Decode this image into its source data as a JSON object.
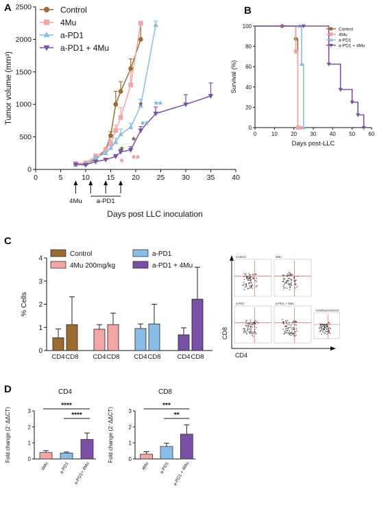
{
  "colors": {
    "control": "#9b6b2f",
    "mu": "#f4a5a5",
    "pd1": "#89bde8",
    "combo": "#7a4fa6",
    "star_brown": "#7a5230",
    "star_pink": "#f08a8a",
    "star_blue": "#6aaee0"
  },
  "panels": {
    "a": "A",
    "b": "B",
    "c": "C",
    "d": "D"
  },
  "chart_data": [
    {
      "id": "A",
      "type": "line",
      "ylabel": "Tumor volume (mm³)",
      "xlabel": "Days post LLC inoculation",
      "xlim": [
        0,
        40
      ],
      "ylim": [
        0,
        2500
      ],
      "xticks": [
        "0",
        "5",
        "10",
        "15",
        "20",
        "25",
        "30",
        "35",
        "40"
      ],
      "yticks": [
        "0",
        "500",
        "1000",
        "1500",
        "2000",
        "2500"
      ],
      "legend_position": "top-left",
      "series": [
        {
          "name": "Control",
          "marker": "circle",
          "x": [
            8,
            10,
            12,
            14,
            15,
            16,
            17,
            19,
            21
          ],
          "y": [
            80,
            90,
            150,
            300,
            520,
            1000,
            1200,
            1550,
            2000
          ],
          "err": [
            10,
            10,
            20,
            30,
            60,
            200,
            150,
            150,
            250
          ]
        },
        {
          "name": "4Mu",
          "marker": "square",
          "x": [
            8,
            10,
            12,
            14,
            15,
            16,
            17,
            19,
            21
          ],
          "y": [
            90,
            100,
            200,
            300,
            400,
            600,
            800,
            1300,
            2250
          ],
          "err": [
            10,
            15,
            40,
            40,
            50,
            80,
            150,
            200,
            0
          ]
        },
        {
          "name": "a-PD1",
          "marker": "triangle",
          "x": [
            8,
            10,
            12,
            14,
            15,
            16,
            17,
            19,
            21,
            24
          ],
          "y": [
            70,
            80,
            180,
            250,
            330,
            420,
            540,
            650,
            980,
            2220
          ],
          "err": [
            10,
            10,
            20,
            30,
            40,
            60,
            80,
            60,
            100,
            60
          ]
        },
        {
          "name": "a-PD1 + 4Mu",
          "marker": "triangle-down",
          "x": [
            8,
            10,
            12,
            14,
            16,
            17,
            19,
            21,
            24,
            30,
            35
          ],
          "y": [
            80,
            70,
            120,
            150,
            200,
            270,
            300,
            600,
            860,
            1000,
            1130
          ],
          "err": [
            10,
            10,
            20,
            20,
            30,
            40,
            50,
            60,
            100,
            150,
            200
          ]
        }
      ],
      "annotations": [
        {
          "text": "*",
          "x": 21,
          "y": 1020,
          "color": "star_brown"
        },
        {
          "text": "**",
          "x": 24.5,
          "y": 1030,
          "color": "star_blue"
        },
        {
          "text": "**",
          "x": 21.8,
          "y": 720,
          "color": "star_blue"
        },
        {
          "text": "*",
          "x": 19.6,
          "y": 480,
          "color": "star_brown"
        },
        {
          "text": "*",
          "x": 17.2,
          "y": 330,
          "color": "star_brown"
        },
        {
          "text": "*",
          "x": 17.2,
          "y": 150,
          "color": "star_pink"
        },
        {
          "text": "**",
          "x": 20,
          "y": 200,
          "color": "star_pink"
        }
      ],
      "treatment": {
        "arrow_days": [
          8,
          11,
          14,
          17
        ],
        "label_4mu": "4Mu",
        "label_pd1": "a-PD1"
      }
    },
    {
      "id": "B",
      "type": "line",
      "step": true,
      "ylabel": "Survival (%)",
      "xlabel": "Days post-LLC",
      "xlim": [
        0,
        60
      ],
      "ylim": [
        0,
        100
      ],
      "xticks": [
        "0",
        "10",
        "20",
        "30",
        "40",
        "50",
        "60"
      ],
      "yticks": [
        "0",
        "20",
        "40",
        "60",
        "80",
        "100"
      ],
      "legend_position": "top-right",
      "series": [
        {
          "name": "Control",
          "marker": "circle",
          "x": [
            0,
            14,
            21,
            22,
            23
          ],
          "y": [
            100,
            100,
            87.5,
            0,
            0
          ]
        },
        {
          "name": "4Mu",
          "marker": "square",
          "x": [
            0,
            21,
            22,
            23
          ],
          "y": [
            100,
            75,
            0,
            0
          ]
        },
        {
          "name": "a-PD1",
          "marker": "triangle",
          "x": [
            0,
            23,
            24,
            25
          ],
          "y": [
            100,
            100,
            62.5,
            0
          ]
        },
        {
          "name": "a-PD1 + 4Mu",
          "marker": "triangle-down",
          "x": [
            0,
            25,
            38,
            44,
            50,
            53,
            56
          ],
          "y": [
            100,
            100,
            62.5,
            37.5,
            25,
            12.5,
            0
          ]
        }
      ]
    },
    {
      "id": "C",
      "type": "bar",
      "ylabel": "% Cells",
      "ylim": [
        0,
        4
      ],
      "yticks": [
        "0",
        "1",
        "2",
        "3",
        "4"
      ],
      "legend_position": "top",
      "legend": [
        "Control",
        "a-PD1",
        "4Mu 200mg/kg",
        "a-PD1 + 4Mu"
      ],
      "groups": [
        {
          "name": "Control",
          "categories": [
            "CD4",
            "CD8"
          ],
          "values": [
            0.55,
            1.12
          ],
          "err": [
            0.38,
            1.2
          ]
        },
        {
          "name": "4Mu 200mg/kg",
          "categories": [
            "CD4",
            "CD8"
          ],
          "values": [
            0.92,
            1.12
          ],
          "err": [
            0.2,
            0.5
          ]
        },
        {
          "name": "a-PD1",
          "categories": [
            "CD4",
            "CD8"
          ],
          "values": [
            0.95,
            1.15
          ],
          "err": [
            0.2,
            0.85
          ]
        },
        {
          "name": "a-PD1 + 4Mu",
          "categories": [
            "CD4",
            "CD8"
          ],
          "values": [
            0.68,
            2.22
          ],
          "err": [
            0.3,
            1.38
          ]
        }
      ]
    },
    {
      "id": "D-CD4",
      "type": "bar",
      "title": "CD4",
      "ylabel": "Fold change (2⁻ΔΔCT)",
      "ylim": [
        0,
        3
      ],
      "yticks": [
        "0",
        "1",
        "2",
        "3"
      ],
      "categories": [
        "4Mu",
        "a-PD1",
        "a-PD1+ 4Mu"
      ],
      "values": [
        0.4,
        0.37,
        1.22
      ],
      "err": [
        0.12,
        0.06,
        0.4
      ],
      "significance": [
        {
          "from": 0,
          "to": 2,
          "label": "****"
        },
        {
          "from": 1,
          "to": 2,
          "label": "****"
        }
      ]
    },
    {
      "id": "D-CD8",
      "type": "bar",
      "title": "CD8",
      "ylabel": "Fold change (2⁻ΔΔCT)",
      "ylim": [
        0,
        3
      ],
      "yticks": [
        "0",
        "1",
        "2",
        "3"
      ],
      "categories": [
        "4Mu",
        "a-PD1",
        "a-PD1 + 4Mu"
      ],
      "values": [
        0.3,
        0.78,
        1.55
      ],
      "err": [
        0.15,
        0.2,
        0.58
      ],
      "significance": [
        {
          "from": 0,
          "to": 2,
          "label": "***"
        },
        {
          "from": 1,
          "to": 2,
          "label": "**"
        }
      ]
    }
  ],
  "flow": {
    "panels": [
      {
        "label": "Control"
      },
      {
        "label": "4Mu"
      },
      {
        "label": "a-PD1"
      },
      {
        "label": "a-PD1 + 4Mu"
      },
      {
        "label": "Autofluorescence"
      }
    ],
    "x_axis": "CD4",
    "y_axis": "CD8"
  }
}
